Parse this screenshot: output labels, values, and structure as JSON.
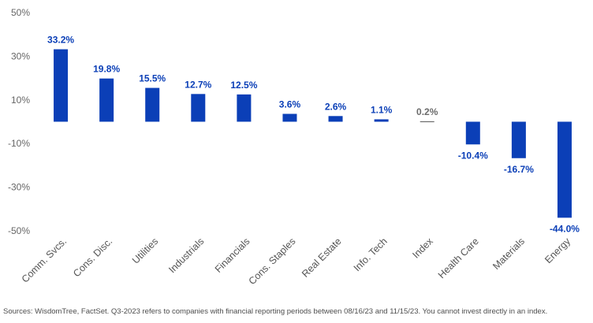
{
  "chart_data": {
    "type": "bar",
    "categories": [
      "Comm. Svcs.",
      "Cons. Disc.",
      "Utilities",
      "Industrials",
      "Financials",
      "Cons. Staples",
      "Real Estate",
      "Info. Tech",
      "Index",
      "Health Care",
      "Materials",
      "Energy"
    ],
    "values": [
      33.2,
      19.8,
      15.5,
      12.7,
      12.5,
      3.6,
      2.6,
      1.1,
      0.2,
      -10.4,
      -16.7,
      -44.0
    ],
    "data_labels": [
      "33.2%",
      "19.8%",
      "15.5%",
      "12.7%",
      "12.5%",
      "3.6%",
      "2.6%",
      "1.1%",
      "0.2%",
      "-10.4%",
      "-16.7%",
      "-44.0%"
    ],
    "yticks": [
      50,
      30,
      10,
      -10,
      -30,
      -50
    ],
    "ytick_labels": [
      "50%",
      "30%",
      "10%",
      "-10%",
      "-30%",
      "-50%"
    ],
    "ylim": [
      -50,
      50
    ],
    "grid": false,
    "colors": {
      "bar": "#0b3fb7",
      "label": "#0b3fb7",
      "index_bar": "#6b6b6b",
      "index_label": "#6b6b6b"
    },
    "highlight_category": "Index",
    "title": "",
    "xlabel": "",
    "ylabel": ""
  },
  "footer": {
    "source": "Sources: WisdomTree, FactSet. Q3-2023 refers to companies with financial reporting periods between 08/16/23 and 11/15/23. You cannot invest directly in an index."
  }
}
